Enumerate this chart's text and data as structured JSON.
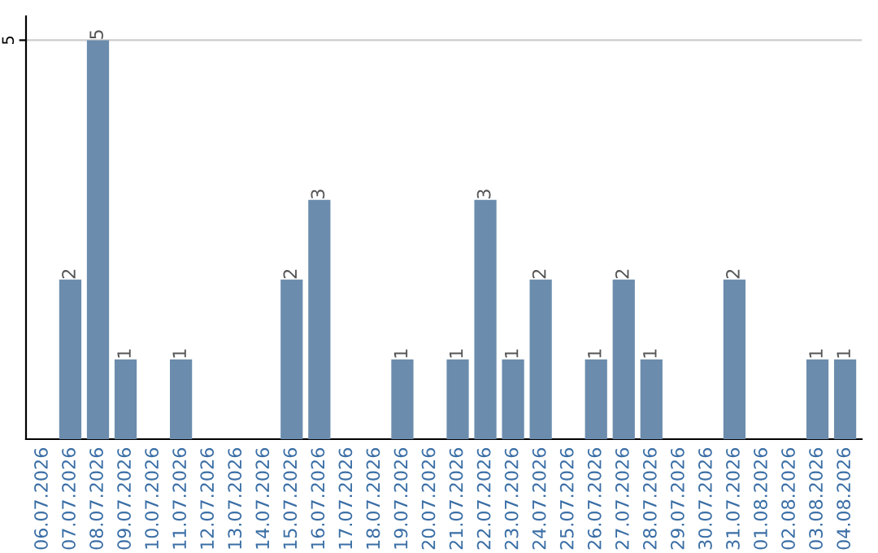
{
  "chart_data": {
    "type": "bar",
    "categories": [
      "06.07.2026",
      "07.07.2026",
      "08.07.2026",
      "09.07.2026",
      "10.07.2026",
      "11.07.2026",
      "12.07.2026",
      "13.07.2026",
      "14.07.2026",
      "15.07.2026",
      "16.07.2026",
      "17.07.2026",
      "18.07.2026",
      "19.07.2026",
      "20.07.2026",
      "21.07.2026",
      "22.07.2026",
      "23.07.2026",
      "24.07.2026",
      "25.07.2026",
      "26.07.2026",
      "27.07.2026",
      "28.07.2026",
      "29.07.2026",
      "30.07.2026",
      "31.07.2026",
      "01.08.2026",
      "02.08.2026",
      "03.08.2026",
      "04.08.2026"
    ],
    "values": [
      0,
      2,
      5,
      1,
      0,
      1,
      0,
      0,
      0,
      2,
      3,
      0,
      0,
      1,
      0,
      1,
      3,
      1,
      2,
      0,
      1,
      2,
      1,
      0,
      0,
      2,
      0,
      0,
      1,
      1
    ],
    "value_labels": [
      null,
      "2",
      "5",
      "1",
      null,
      "1",
      null,
      null,
      null,
      "2",
      "3",
      null,
      null,
      "1",
      null,
      "1",
      "3",
      "1",
      "2",
      null,
      "1",
      "2",
      "1",
      null,
      null,
      "2",
      null,
      null,
      "1",
      "1"
    ],
    "color": "#6b8cad",
    "ylim": [
      0,
      5.3
    ],
    "yticks": [
      5
    ],
    "grid": "y"
  }
}
